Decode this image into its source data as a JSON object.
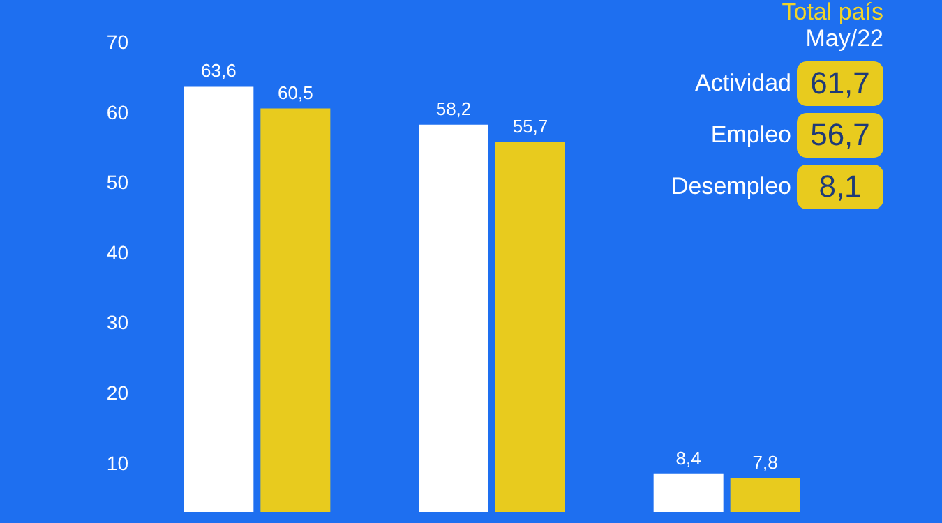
{
  "chart_data": [
    {
      "type": "bar",
      "categories": [
        null,
        null,
        null
      ],
      "series": [
        {
          "color": "#ffffff",
          "values": [
            63.6,
            58.2,
            8.4
          ],
          "value_labels": [
            "63,6",
            "58,2",
            "8,4"
          ]
        },
        {
          "color": "#e8cb1e",
          "values": [
            60.5,
            55.7,
            7.8
          ],
          "value_labels": [
            "60,5",
            "55,7",
            "7,8"
          ]
        }
      ],
      "ylim": [
        3,
        70
      ],
      "yticks": [
        10,
        20,
        30,
        40,
        50,
        60,
        70
      ],
      "grid": false
    },
    {
      "type": "other",
      "title": "Total país",
      "subtitle": "May/22",
      "annotations": [
        "Actividad",
        "61,7",
        "Empleo",
        "56,7",
        "Desempleo",
        "8,1"
      ]
    }
  ]
}
